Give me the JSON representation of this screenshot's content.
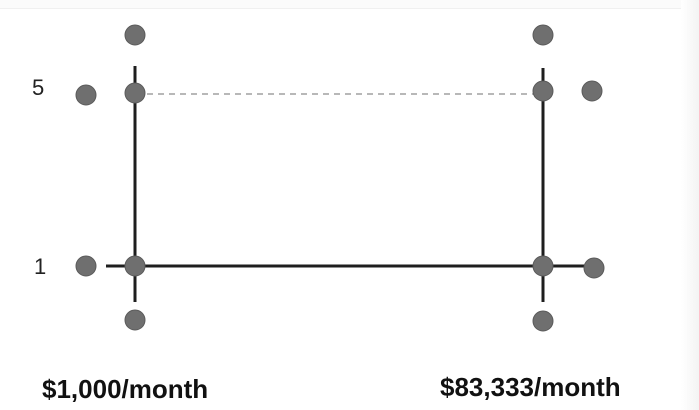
{
  "diagram": {
    "y_ticks": {
      "high": "5",
      "low": "1"
    },
    "x_labels": {
      "left": "$1,000/month",
      "right": "$83,333/month"
    },
    "colors": {
      "line": "#1e1e1e",
      "dashed_line": "#b8b8b8",
      "node": "#6f6f6f",
      "node_edge": "#5a5a5a",
      "text": "#111111"
    }
  }
}
